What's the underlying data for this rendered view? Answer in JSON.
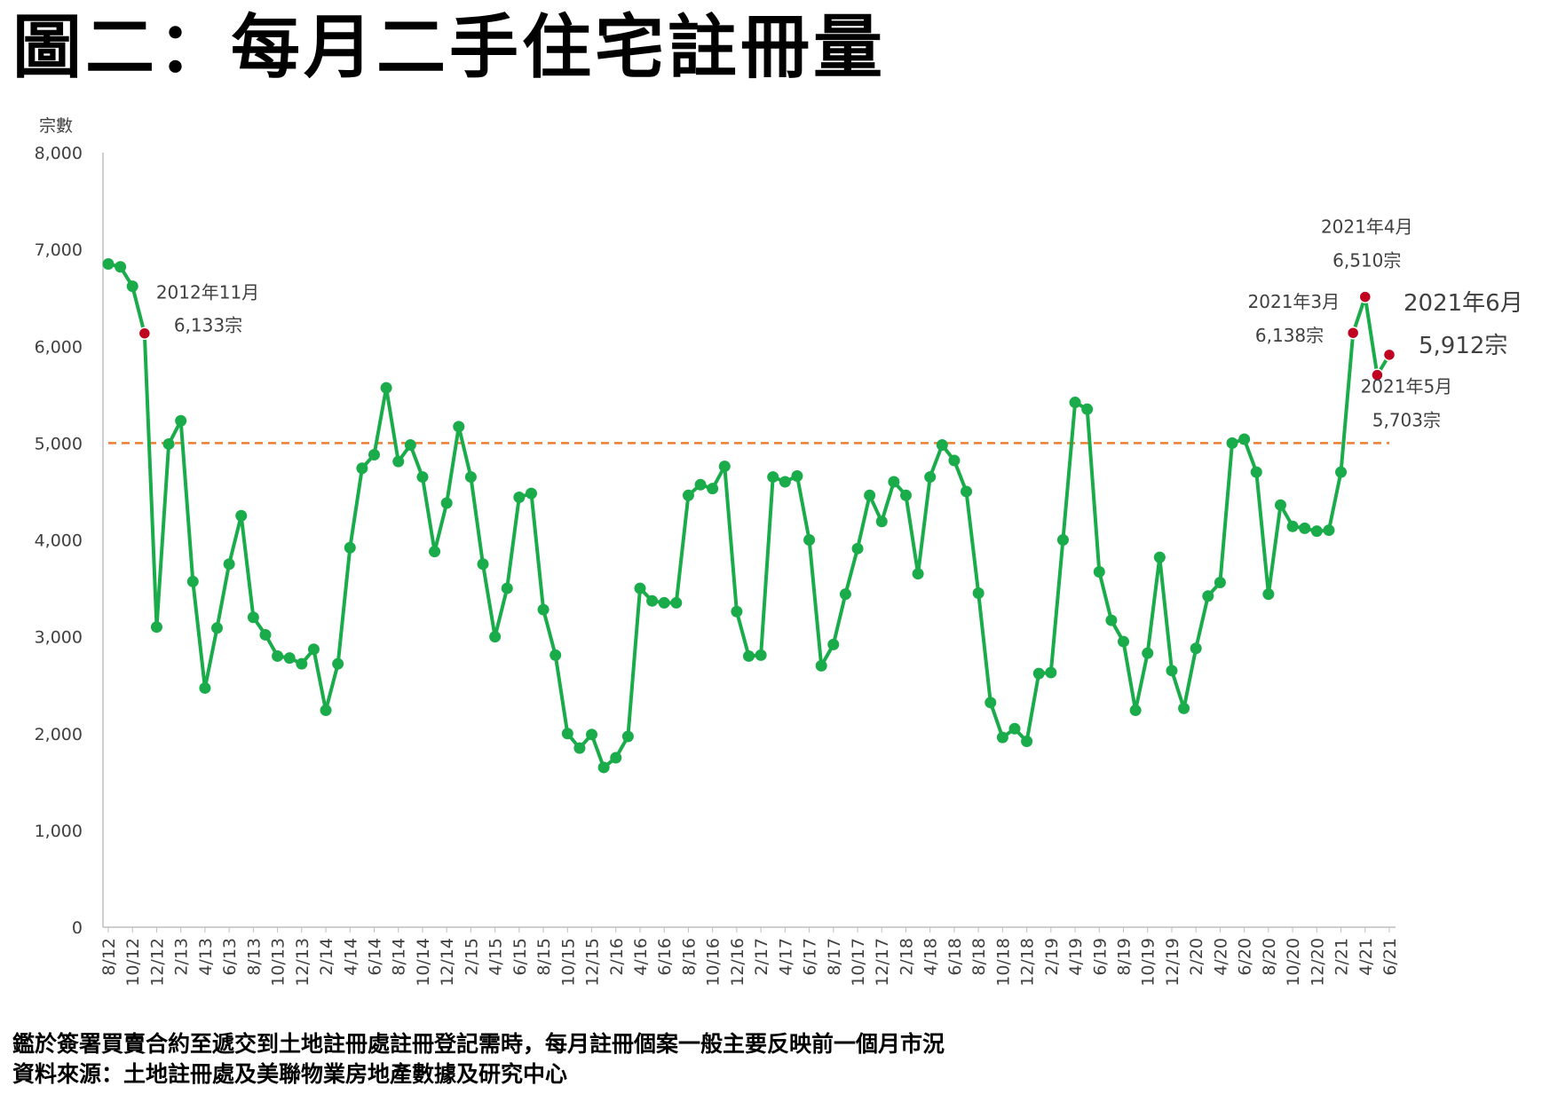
{
  "title": "圖二：每月二手住宅註冊量",
  "footnote": {
    "line1": "鑑於簽署買賣合約至遞交到土地註冊處註冊登記需時，每月註冊個案一般主要反映前一個月市況",
    "line2": "資料來源：土地註冊處及美聯物業房地產數據及研究中心"
  },
  "colors": {
    "line": "#1aac4a",
    "marker": "#1aac4a",
    "highlight": "#c00020",
    "reference": "#ed7d31",
    "axis": "#bfbfbf"
  },
  "chart_data": {
    "type": "line",
    "title": "圖二：每月二手住宅註冊量",
    "ylabel": "宗數",
    "xlabel": "",
    "ylim": [
      0,
      8000
    ],
    "y_ticks": [
      "0",
      "1,000",
      "2,000",
      "3,000",
      "4,000",
      "5,000",
      "6,000",
      "7,000",
      "8,000"
    ],
    "x_tick_labels": [
      "8/12",
      "10/12",
      "12/12",
      "2/13",
      "4/13",
      "6/13",
      "8/13",
      "10/13",
      "12/13",
      "2/14",
      "4/14",
      "6/14",
      "8/14",
      "10/14",
      "12/14",
      "2/15",
      "4/15",
      "6/15",
      "8/15",
      "10/15",
      "12/15",
      "2/16",
      "4/16",
      "6/16",
      "8/16",
      "10/16",
      "12/16",
      "2/17",
      "4/17",
      "6/17",
      "8/17",
      "10/17",
      "12/17",
      "2/18",
      "4/18",
      "6/18",
      "8/18",
      "10/18",
      "12/18",
      "2/19",
      "4/19",
      "6/19",
      "8/19",
      "10/19",
      "12/19",
      "2/20",
      "4/20",
      "6/20",
      "8/20",
      "10/20",
      "12/20",
      "2/21",
      "4/21",
      "6/21"
    ],
    "reference_line": 5000,
    "grid": false,
    "series": [
      {
        "values": [
          6850,
          6820,
          6620,
          6133,
          3100,
          4990,
          5230,
          3570,
          2470,
          3090,
          3750,
          4250,
          3200,
          3020,
          2800,
          2780,
          2720,
          2870,
          2240,
          2720,
          3920,
          4740,
          4880,
          5570,
          4810,
          4980,
          4650,
          3880,
          4380,
          5170,
          4650,
          3750,
          3000,
          3500,
          4440,
          4480,
          3280,
          2810,
          2000,
          1850,
          1990,
          1650,
          1750,
          1970,
          3500,
          3370,
          3350,
          3350,
          4460,
          4570,
          4530,
          4760,
          3260,
          2800,
          2810,
          4650,
          4600,
          4660,
          4000,
          2700,
          2920,
          3440,
          3910,
          4460,
          4190,
          4600,
          4460,
          3650,
          4650,
          4980,
          4820,
          4500,
          3450,
          2320,
          1960,
          2050,
          1920,
          2620,
          2630,
          4000,
          5420,
          5350,
          3670,
          3170,
          2950,
          2240,
          2830,
          3820,
          2650,
          2260,
          2880,
          3420,
          3560,
          5000,
          5040,
          4700,
          3440,
          4360,
          4140,
          4120,
          4090,
          4100,
          4700,
          6138,
          6510,
          5703,
          5912
        ]
      }
    ],
    "annotations": [
      {
        "label": "2012年11月",
        "value": "6,133宗",
        "index": 3
      },
      {
        "label": "2021年3月",
        "value": "6,138宗",
        "index": 103
      },
      {
        "label": "2021年4月",
        "value": "6,510宗",
        "index": 104
      },
      {
        "label": "2021年5月",
        "value": "5,703宗",
        "index": 105
      },
      {
        "label": "2021年6月",
        "value": "5,912宗",
        "index": 106
      }
    ]
  }
}
